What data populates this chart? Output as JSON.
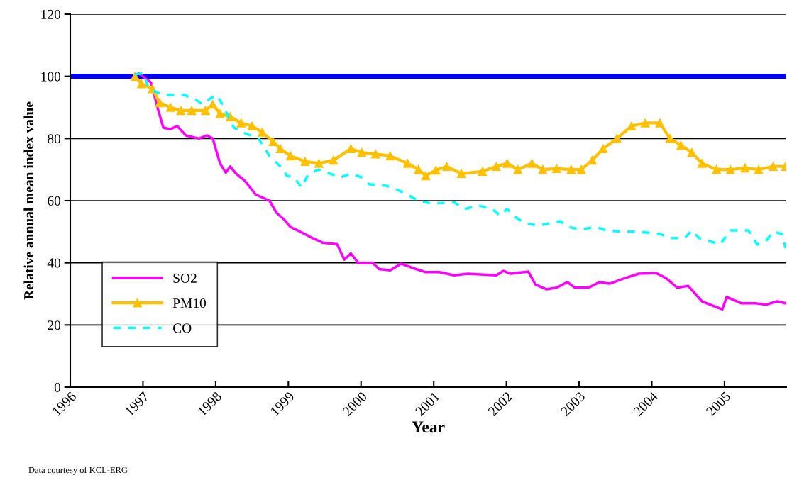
{
  "chart_data": {
    "type": "line",
    "xlabel": "Year",
    "ylabel": "Relative annual mean index value",
    "annotations": [
      "Data courtesy of KCL-ERG"
    ],
    "xlim": [
      1996,
      2005.85
    ],
    "xticks": [
      1996,
      1997,
      1998,
      1999,
      2000,
      2001,
      2002,
      2003,
      2004,
      2005
    ],
    "ylim": [
      0,
      120
    ],
    "yticks": [
      0,
      20,
      40,
      60,
      80,
      100,
      120
    ],
    "grid": "y",
    "legend": "bottom left",
    "ref_lines": [
      {
        "axis": "y",
        "value": 100,
        "color": "#0000ff",
        "line_style": "solid"
      }
    ],
    "series": [
      {
        "name": "SO2",
        "color": "#ff00ff",
        "line_style": "solid",
        "marker": "none",
        "x": [
          1996.94,
          1997.11,
          1997.2,
          1997.28,
          1997.38,
          1997.47,
          1997.59,
          1997.77,
          1997.88,
          1997.96,
          1998.06,
          1998.14,
          1998.2,
          1998.28,
          1998.4,
          1998.55,
          1998.74,
          1998.84,
          1998.94,
          1999.03,
          1999.13,
          1999.33,
          1999.47,
          1999.67,
          1999.77,
          1999.86,
          1999.96,
          2000.16,
          2000.25,
          2000.4,
          2000.55,
          2000.69,
          2000.89,
          2001.08,
          2001.28,
          2001.47,
          2001.86,
          2001.96,
          2002.06,
          2002.3,
          2002.4,
          2002.55,
          2002.69,
          2002.84,
          2002.94,
          2003.13,
          2003.28,
          2003.42,
          2003.62,
          2003.82,
          2004.06,
          2004.2,
          2004.35,
          2004.5,
          2004.69,
          2004.97,
          2005.03,
          2005.23,
          2005.42,
          2005.57,
          2005.72,
          2005.84
        ],
        "values": [
          101,
          98,
          90,
          83.5,
          83,
          84,
          81,
          80,
          81,
          80,
          72,
          69,
          71,
          68.7,
          66.4,
          62,
          60,
          56,
          54,
          51.5,
          50.4,
          48,
          46.5,
          46,
          41,
          43,
          40,
          40,
          38,
          37.6,
          39.7,
          38.5,
          37,
          37,
          36,
          36.5,
          36,
          37.4,
          36.5,
          37.2,
          33,
          31.5,
          32,
          33.8,
          32,
          32,
          33.8,
          33.3,
          35,
          36.5,
          36.7,
          35,
          32,
          32.6,
          27.6,
          25,
          29,
          27,
          27,
          26.5,
          27.6,
          27
        ]
      },
      {
        "name": "PM10",
        "color": "#ffc000",
        "line_style": "solid",
        "marker": "triangle",
        "x": [
          1996.89,
          1996.98,
          1997.13,
          1997.23,
          1997.38,
          1997.52,
          1997.67,
          1997.86,
          1997.96,
          1998.06,
          1998.2,
          1998.35,
          1998.5,
          1998.64,
          1998.79,
          1998.89,
          1999.03,
          1999.23,
          1999.42,
          1999.62,
          1999.86,
          2000.01,
          2000.2,
          2000.4,
          2000.64,
          2000.79,
          2000.89,
          2001.03,
          2001.18,
          2001.38,
          2001.67,
          2001.86,
          2002.01,
          2002.16,
          2002.35,
          2002.5,
          2002.69,
          2002.89,
          2003.03,
          2003.18,
          2003.33,
          2003.52,
          2003.72,
          2003.91,
          2004.11,
          2004.25,
          2004.4,
          2004.55,
          2004.69,
          2004.89,
          2005.08,
          2005.28,
          2005.47,
          2005.67,
          2005.84
        ],
        "values": [
          100,
          97.6,
          96,
          91.5,
          90,
          89,
          89,
          89,
          91,
          88,
          87,
          85,
          84,
          82,
          79,
          76.7,
          74.4,
          72.6,
          72,
          73,
          76.7,
          75.5,
          75,
          74.4,
          72,
          70,
          68,
          69.8,
          71,
          68.7,
          69.4,
          71,
          72,
          70,
          72,
          70,
          70.3,
          70,
          70,
          73,
          76.7,
          80,
          84,
          85,
          85,
          80,
          77.8,
          75.5,
          72,
          70,
          70,
          70.5,
          70,
          71,
          71
        ]
      },
      {
        "name": "CO",
        "color": "#00ffff",
        "line_style": "dashed",
        "marker": "none",
        "x": [
          1996.89,
          1997.01,
          1997.08,
          1997.28,
          1997.57,
          1997.72,
          1997.82,
          1997.91,
          1998.01,
          1998.08,
          1998.25,
          1998.4,
          1998.59,
          1998.74,
          1998.89,
          1998.98,
          1999.08,
          1999.18,
          1999.28,
          1999.42,
          1999.57,
          1999.72,
          1999.86,
          2000.01,
          2000.11,
          2000.35,
          2000.55,
          2000.79,
          2000.98,
          2001.28,
          2001.42,
          2001.62,
          2001.81,
          2001.91,
          2002.01,
          2002.11,
          2002.25,
          2002.45,
          2002.74,
          2002.84,
          2003.03,
          2003.23,
          2003.37,
          2003.62,
          2003.82,
          2004.11,
          2004.25,
          2004.45,
          2004.55,
          2004.65,
          2004.79,
          2004.94,
          2005.08,
          2005.33,
          2005.45,
          2005.57,
          2005.67,
          2005.79,
          2005.84
        ],
        "values": [
          100.6,
          101,
          96,
          94,
          94,
          92.6,
          91,
          92.6,
          94,
          91.5,
          83.5,
          81.7,
          80,
          74.4,
          71,
          68,
          67.5,
          64.3,
          68.7,
          70,
          68.7,
          67.5,
          68.7,
          67.5,
          65.3,
          64.8,
          63,
          60,
          59,
          59.5,
          57.3,
          58.4,
          57.3,
          55.2,
          57.3,
          55,
          52.7,
          52,
          53.4,
          51.6,
          50.7,
          51.6,
          50.4,
          50,
          50,
          49.3,
          48,
          47.9,
          50.4,
          48,
          47,
          45.9,
          50.4,
          50.4,
          45.9,
          47,
          50,
          49.3,
          44.7
        ]
      }
    ]
  }
}
